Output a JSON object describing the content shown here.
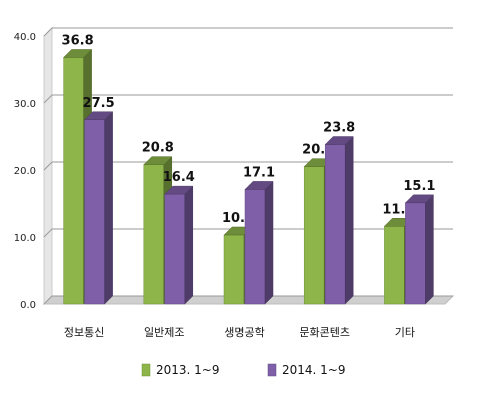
{
  "chart_data": {
    "type": "bar",
    "categories": [
      "정보통신",
      "일반제조",
      "생명공학",
      "문화콘텐츠",
      "기타"
    ],
    "series": [
      {
        "name": "2013. 1~9",
        "values": [
          36.8,
          20.8,
          10.3,
          20.5,
          11.6
        ],
        "color": "#8db54a"
      },
      {
        "name": "2014. 1~9",
        "values": [
          27.5,
          16.4,
          17.1,
          23.8,
          15.1
        ],
        "color": "#7f5fa8"
      }
    ],
    "value_labels": {
      "2013. 1~9": [
        "36.8",
        "20.8",
        "10.3",
        "20.5",
        "11.6"
      ],
      "2014. 1~9": [
        "27.5",
        "16.4",
        "17.1",
        "23.8",
        "15.1"
      ]
    },
    "yticks": [
      "0.0",
      "10.0",
      "20.0",
      "30.0",
      "40.0"
    ],
    "ylim": [
      0,
      40
    ],
    "grid": true,
    "style": "3d-column",
    "legend_position": "bottom"
  }
}
